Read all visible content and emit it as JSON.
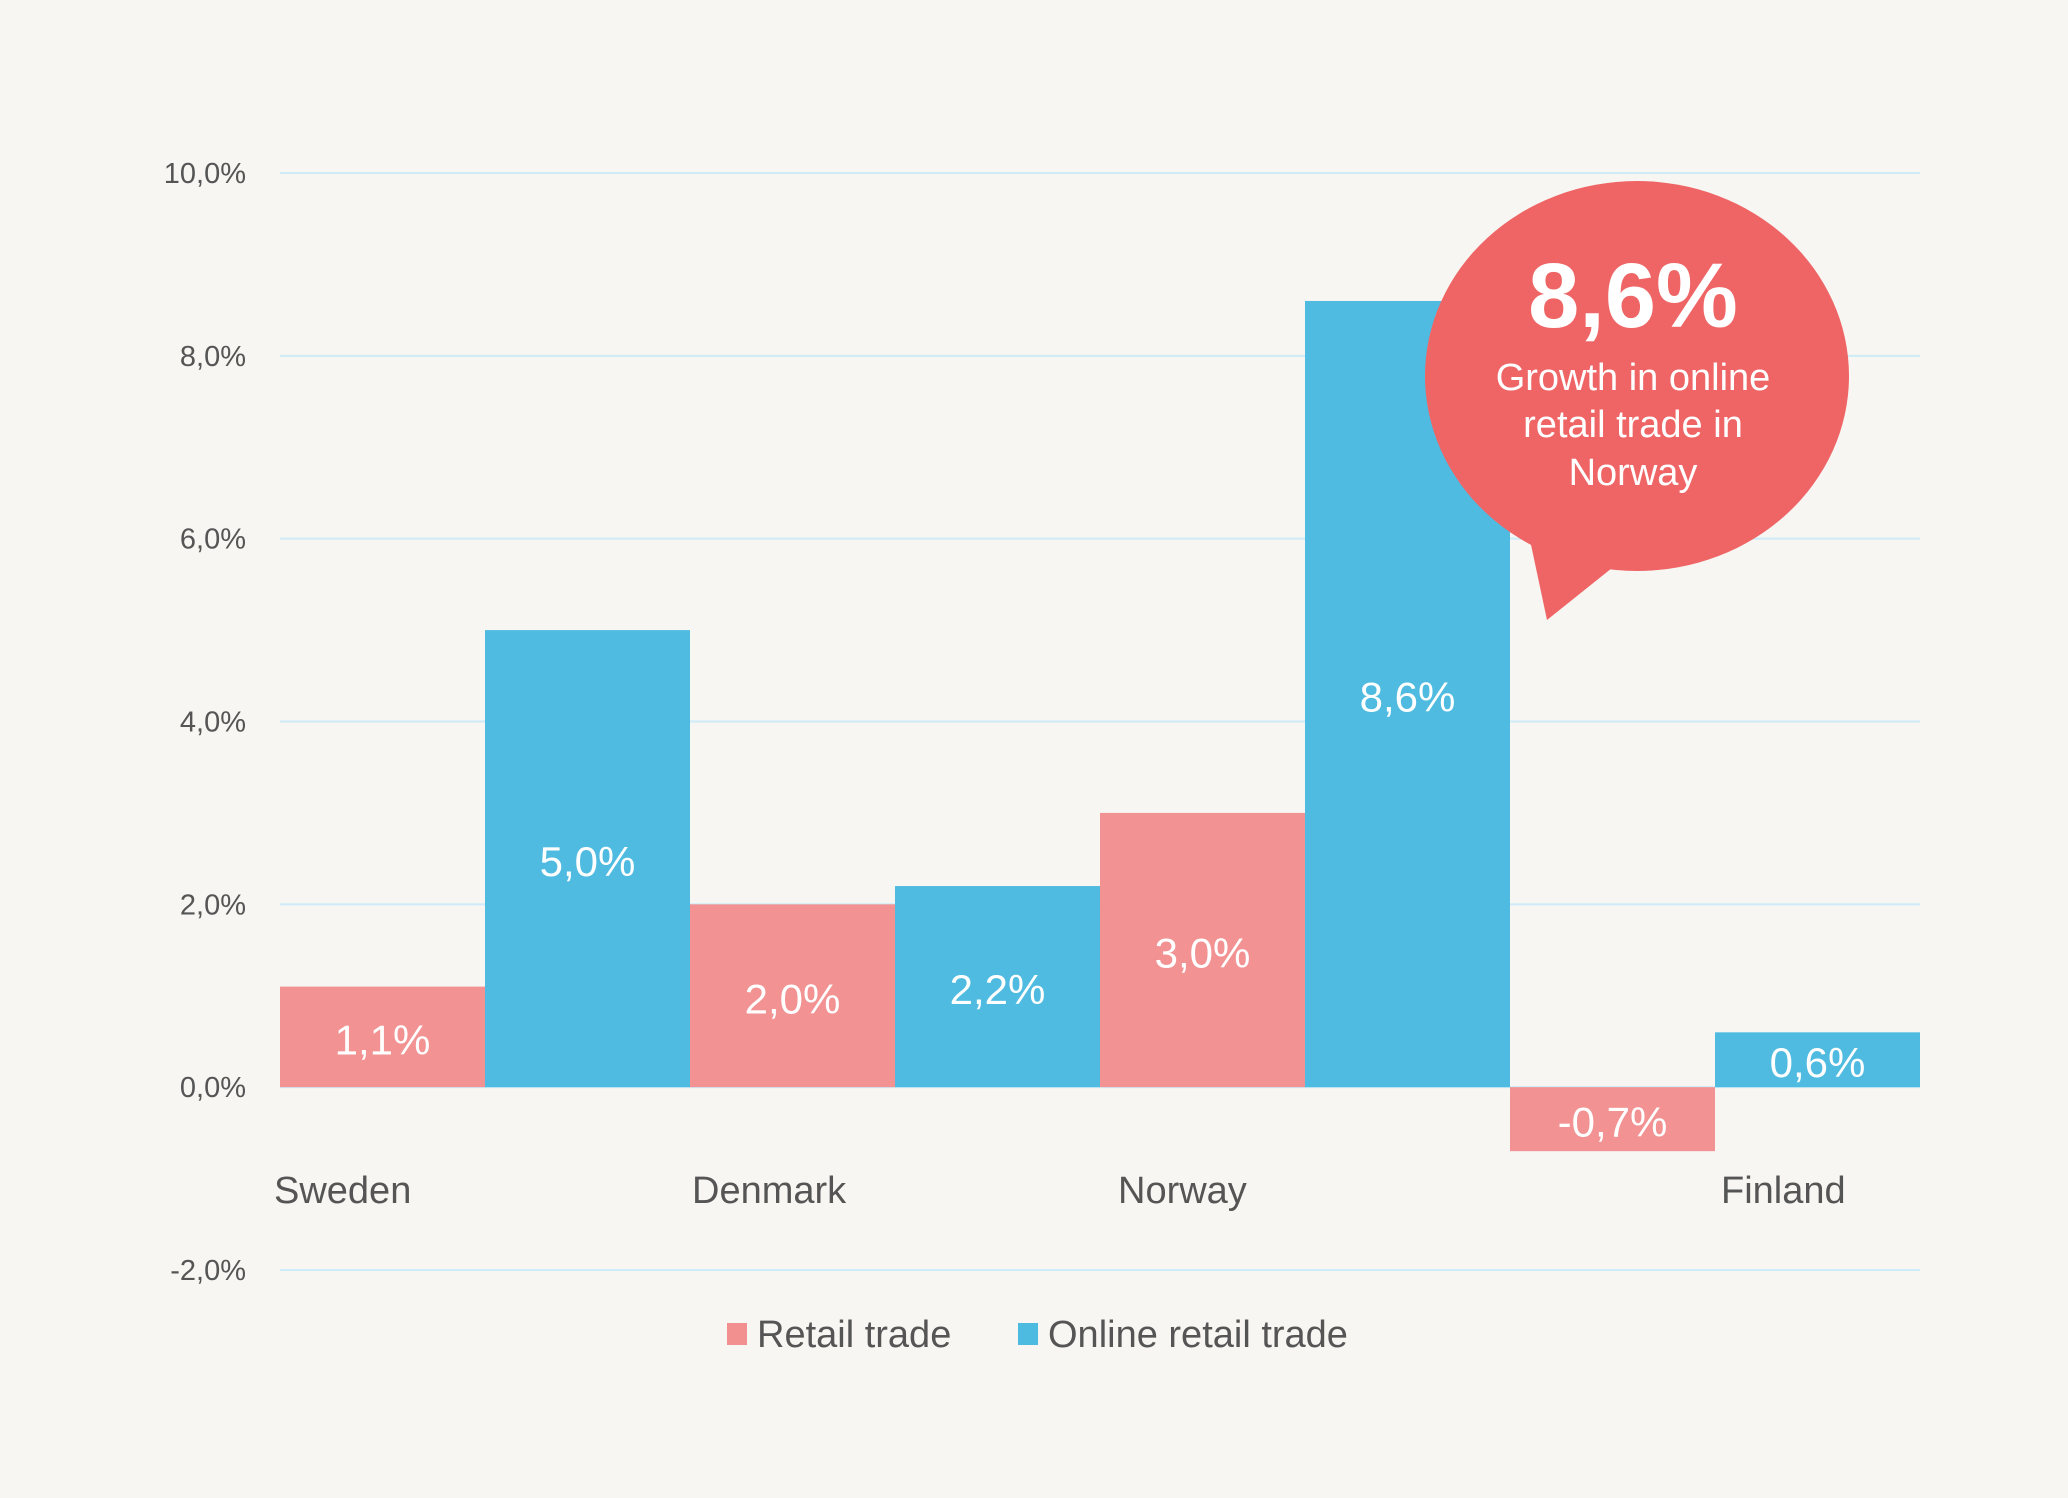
{
  "chart_data": {
    "type": "bar",
    "categories": [
      "Sweden",
      "Denmark",
      "Norway",
      "Finland"
    ],
    "series": [
      {
        "name": "Retail trade",
        "values": [
          1.1,
          2.0,
          3.0,
          -0.7
        ],
        "labels": [
          "1,1%",
          "2,0%",
          "3,0%",
          "-0,7%"
        ],
        "color": "#F29090"
      },
      {
        "name": "Online retail trade",
        "values": [
          5.0,
          2.2,
          8.6,
          0.6
        ],
        "labels": [
          "5,0%",
          "2,2%",
          "8,6%",
          "0,6%"
        ],
        "color": "#4DBADF"
      }
    ],
    "ylim": [
      -2,
      10
    ],
    "yticks": [
      -2,
      0,
      2,
      4,
      6,
      8,
      10
    ],
    "ytick_labels": [
      "-2,0%",
      "0,0%",
      "2,0%",
      "4,0%",
      "6,0%",
      "8,0%",
      "10,0%"
    ],
    "grid": true,
    "legend_position": "bottom",
    "annotation": {
      "value": "8,6%",
      "text_lines": [
        "Growth in online",
        "retail trade in",
        "Norway"
      ],
      "color": "#EF6566"
    }
  }
}
